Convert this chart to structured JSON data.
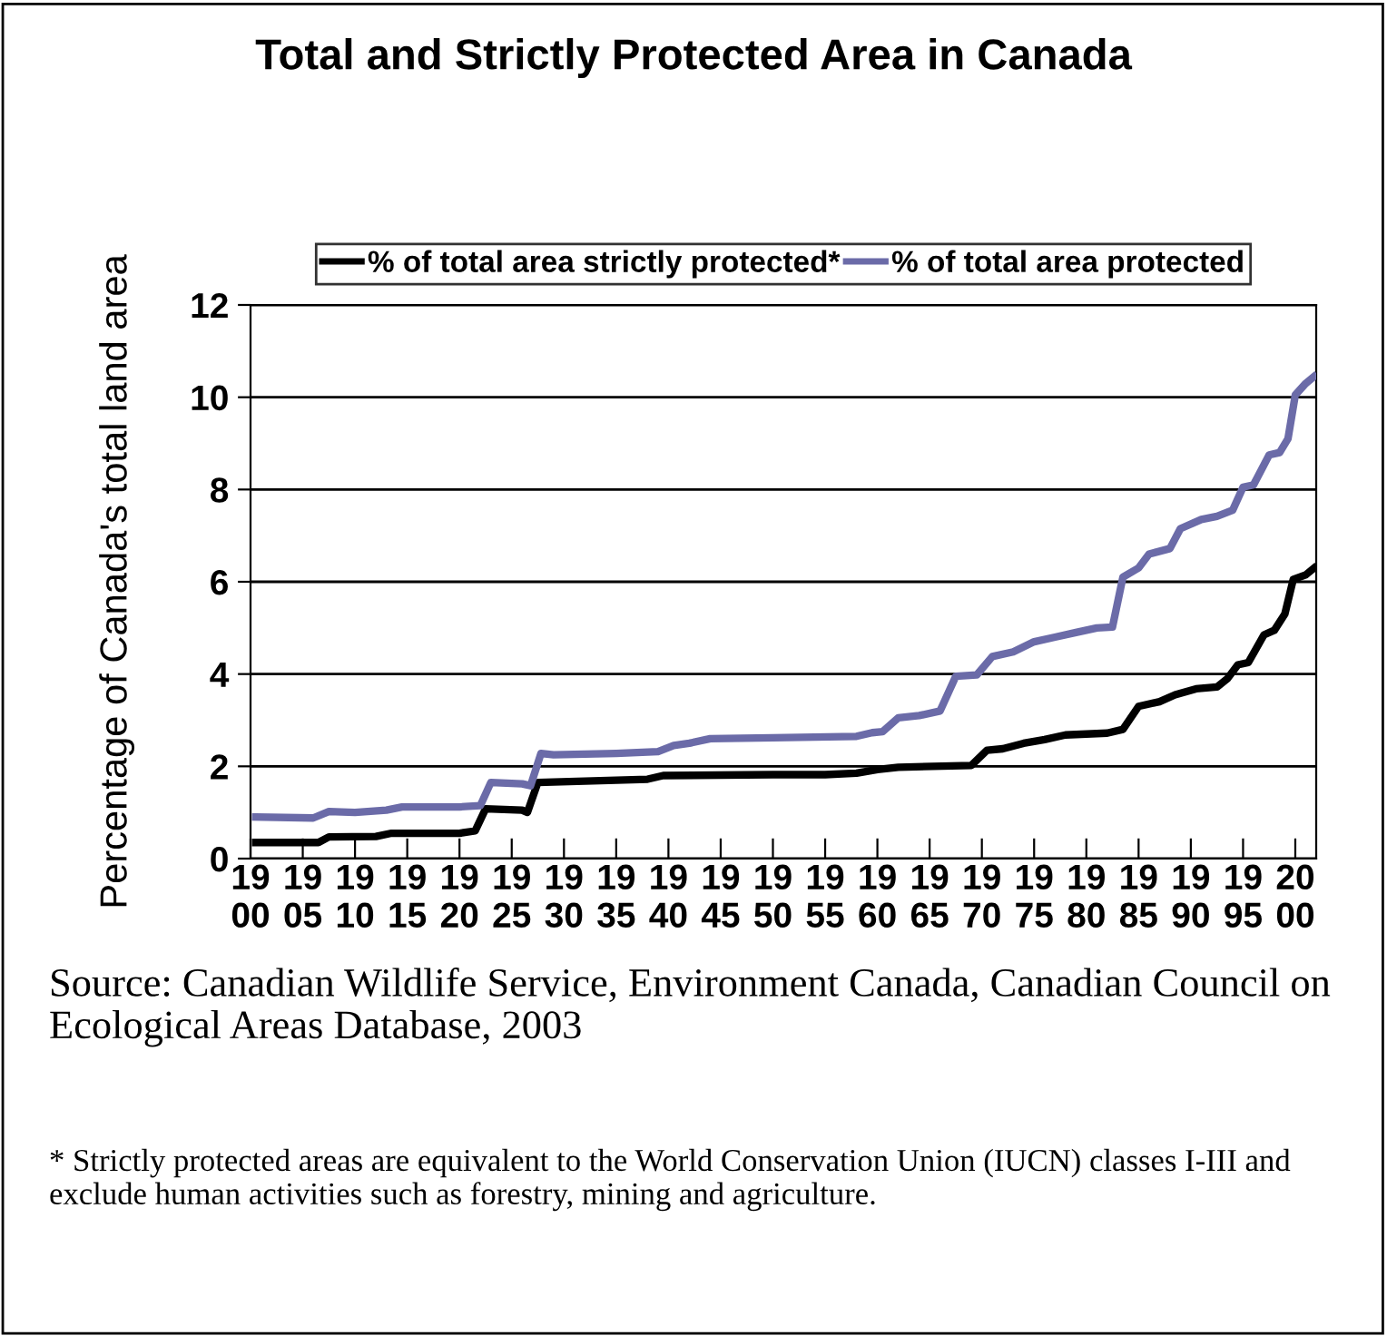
{
  "chart_data": {
    "type": "line",
    "title": "Total and Strictly Protected Area in Canada",
    "ylabel": "Percentage of Canada's total land area",
    "xlim": [
      1900,
      2002
    ],
    "ylim": [
      0,
      12
    ],
    "yticks": [
      0,
      2,
      4,
      6,
      8,
      10,
      12
    ],
    "xticks": [
      1900,
      1905,
      1910,
      1915,
      1920,
      1925,
      1930,
      1935,
      1940,
      1945,
      1950,
      1955,
      1960,
      1965,
      1970,
      1975,
      1980,
      1985,
      1990,
      1995,
      2000
    ],
    "grid": "y",
    "legend": "top",
    "marker": "none",
    "line_style": "solid",
    "series": [
      {
        "name": "% of total area strictly protected*",
        "color": "#000000",
        "x": [
          1900.5,
          1906.5,
          1907.5,
          1912,
          1913.5,
          1920,
          1921.5,
          1922.5,
          1926,
          1926.5,
          1927.5,
          1935,
          1938,
          1939.5,
          1950,
          1955,
          1958,
          1960,
          1962,
          1969,
          1970.5,
          1972,
          1974,
          1976,
          1978,
          1982,
          1983.5,
          1985,
          1987,
          1988.5,
          1990.5,
          1992.5,
          1993.5,
          1994.5,
          1995.5,
          1997,
          1998,
          1999,
          1999.8,
          2001,
          2001.8
        ],
        "values": [
          0.35,
          0.35,
          0.47,
          0.48,
          0.55,
          0.55,
          0.6,
          1.08,
          1.05,
          1.0,
          1.65,
          1.7,
          1.72,
          1.8,
          1.82,
          1.82,
          1.85,
          1.93,
          1.98,
          2.02,
          2.35,
          2.38,
          2.5,
          2.58,
          2.68,
          2.72,
          2.8,
          3.3,
          3.4,
          3.55,
          3.68,
          3.72,
          3.9,
          4.2,
          4.25,
          4.85,
          4.95,
          5.3,
          6.05,
          6.15,
          6.3
        ]
      },
      {
        "name": "% of total area protected",
        "color": "#6b6ba8",
        "x": [
          1900.5,
          1906,
          1907.5,
          1910,
          1913,
          1914.5,
          1920,
          1922,
          1923,
          1926,
          1926.8,
          1927.8,
          1929,
          1935,
          1939,
          1940.5,
          1942,
          1944,
          1950,
          1958,
          1959.5,
          1960.5,
          1962,
          1964,
          1966,
          1967.5,
          1969.5,
          1971,
          1973,
          1975,
          1977,
          1979,
          1981,
          1982.5,
          1983.5,
          1985,
          1986,
          1988,
          1989,
          1991,
          1992.5,
          1994,
          1995,
          1996,
          1997.5,
          1998.5,
          1999.3,
          2000,
          2001,
          2001.8
        ],
        "values": [
          0.9,
          0.88,
          1.02,
          1.0,
          1.05,
          1.12,
          1.12,
          1.15,
          1.65,
          1.62,
          1.58,
          2.28,
          2.25,
          2.28,
          2.32,
          2.45,
          2.5,
          2.6,
          2.62,
          2.65,
          2.73,
          2.75,
          3.05,
          3.1,
          3.2,
          3.95,
          3.98,
          4.38,
          4.48,
          4.7,
          4.8,
          4.9,
          5.0,
          5.02,
          6.1,
          6.3,
          6.6,
          6.72,
          7.15,
          7.35,
          7.42,
          7.55,
          8.05,
          8.1,
          8.75,
          8.8,
          9.1,
          10.05,
          10.3,
          10.45
        ]
      }
    ],
    "annotations": [
      "Source: Canadian Wildlife Service, Environment Canada, Canadian Council on Ecological Areas Database, 2003",
      "* Strictly protected areas are equivalent to the World Conservation Union (IUCN) classes I-III and exclude human activities such as forestry, mining and agriculture."
    ]
  }
}
